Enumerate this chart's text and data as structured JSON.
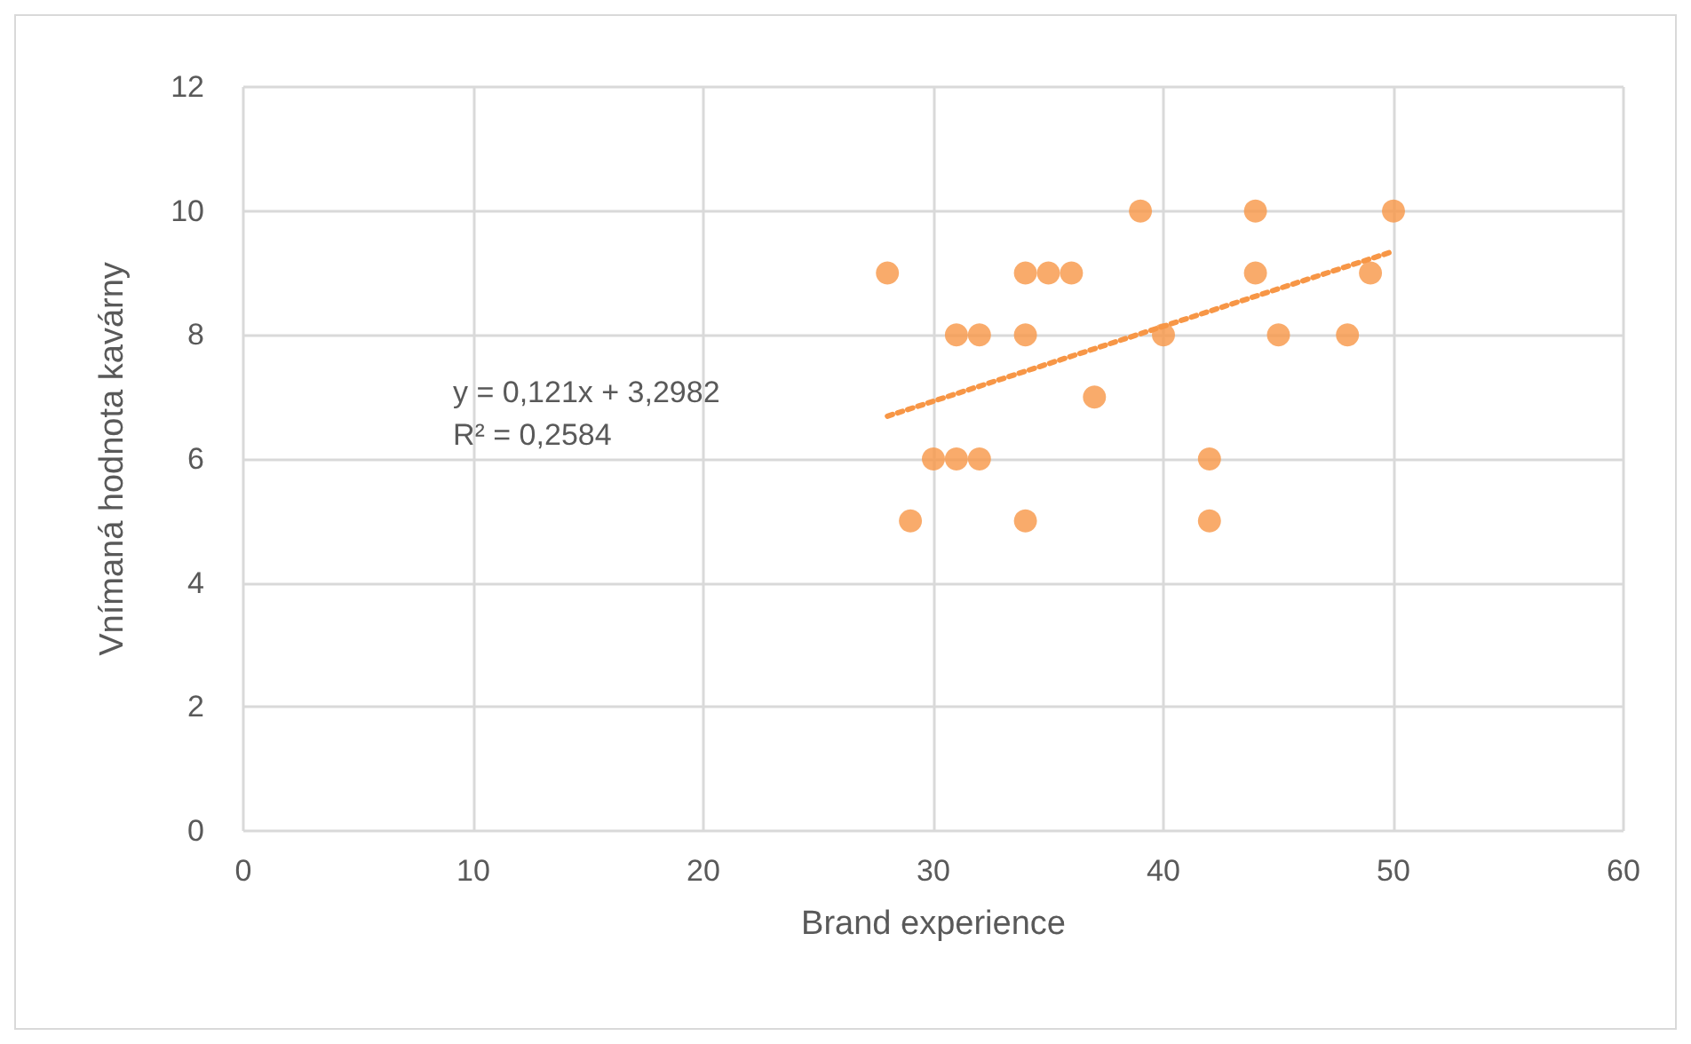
{
  "chart_data": {
    "type": "scatter",
    "xlabel": "Brand experience",
    "ylabel": "Vnímaná hodnota kavárny",
    "xlim": [
      0,
      60
    ],
    "xticks": [
      0,
      10,
      20,
      30,
      40,
      50,
      60
    ],
    "ylim": [
      0,
      12
    ],
    "yticks": [
      0,
      2,
      4,
      6,
      8,
      10,
      12
    ],
    "grid": true,
    "marker": "circle",
    "annotations": [
      "y = 0,121x + 3,2982\nR² = 0,2584"
    ],
    "series": [
      {
        "color": "#f79646",
        "x": [
          28,
          29,
          30,
          31,
          31,
          32,
          32,
          34,
          34,
          34,
          35,
          36,
          37,
          39,
          40,
          42,
          42,
          44,
          44,
          45,
          48,
          49,
          50
        ],
        "values": [
          9,
          5,
          6,
          8,
          6,
          8,
          6,
          9,
          8,
          5,
          9,
          9,
          7,
          10,
          8,
          6,
          5,
          10,
          9,
          8,
          8,
          9,
          10
        ]
      },
      {
        "type": "line",
        "line_style": "dotted",
        "marker": "none",
        "color": "#f79646",
        "x": [
          28,
          50
        ],
        "values": [
          6.69,
          9.35
        ]
      }
    ]
  }
}
